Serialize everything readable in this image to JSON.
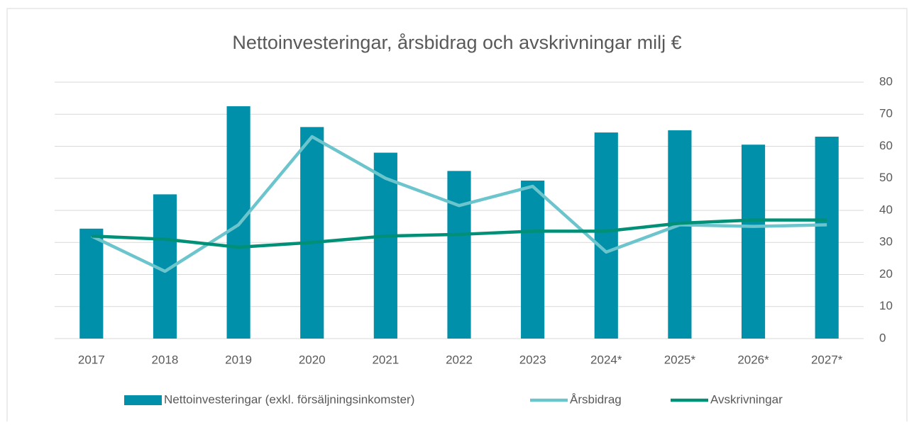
{
  "chart_data": {
    "type": "bar_line",
    "title": "Nettoinvesteringar, årsbidrag och avskrivningar milj €",
    "categories": [
      "2017",
      "2018",
      "2019",
      "2020",
      "2021",
      "2022",
      "2023",
      "2024*",
      "2025*",
      "2026*",
      "2027*"
    ],
    "series": [
      {
        "name": "Nettoinvesteringar (exkl. försäljningsinkomster)",
        "type": "bar",
        "color": "#0090aa",
        "values": [
          34.3,
          45,
          72.5,
          66,
          58,
          52.3,
          49.3,
          64.3,
          65,
          60.5,
          63
        ]
      },
      {
        "name": "Årsbidrag",
        "type": "line",
        "color": "#6cc5cc",
        "values": [
          32,
          21,
          35.5,
          63,
          50,
          41.5,
          47.5,
          27,
          35.5,
          35,
          35.5
        ]
      },
      {
        "name": "Avskrivningar",
        "type": "line",
        "color": "#009078",
        "values": [
          32,
          31,
          28.5,
          30,
          32,
          32.5,
          33.5,
          33.5,
          36,
          37,
          37
        ]
      }
    ],
    "ylim": [
      0,
      80
    ],
    "yticks": [
      0,
      10,
      20,
      30,
      40,
      50,
      60,
      70,
      80
    ],
    "grid": true,
    "y_axis_side": "right",
    "legend": "bottom"
  }
}
